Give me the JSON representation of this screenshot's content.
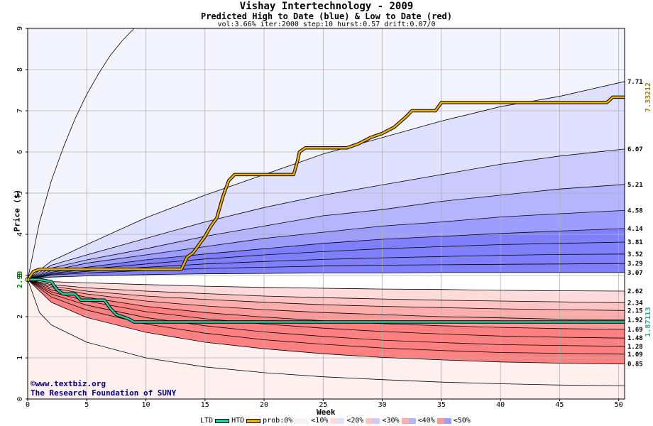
{
  "title": "Vishay Intertechnology - 2009",
  "subtitle": "Predicted High to Date (blue) & Low to Date (red)",
  "params": "vol:3.66% iter:2000 step:10 hurst:0.57 drift:0.07/0",
  "xlabel": "Week",
  "ylabel": "Price ($)",
  "credit_line1": "©www.textbiz.org",
  "credit_line2": "The Research Foundation of SUNY",
  "legend": {
    "ltd": "LTD",
    "htd": "HTD",
    "prob_prefix": "prob:0%",
    "bins": [
      "<10%",
      "<20%",
      "<30%",
      "<40%",
      "<50%"
    ]
  },
  "colors": {
    "htd_line": "#f0b000",
    "ltd_line": "#20d0a0",
    "blue_bands": [
      "#f4f4ff",
      "#e0e0ff",
      "#cacaff",
      "#b4b4ff",
      "#9d9dff",
      "#8080ff"
    ],
    "red_bands": [
      "#fff0f0",
      "#ffdcdc",
      "#ffc4c4",
      "#ffaeae",
      "#ff9a9a",
      "#ff8080"
    ],
    "start_label": "#008000"
  },
  "chart_data": {
    "type": "area",
    "xlim": [
      0,
      50.5
    ],
    "ylim": [
      0,
      9
    ],
    "x_ticks": [
      0,
      5,
      10,
      15,
      20,
      25,
      30,
      35,
      40,
      45,
      50
    ],
    "y_ticks": [
      0,
      1,
      2,
      3,
      4,
      5,
      6,
      7,
      8,
      9
    ],
    "grid": true,
    "start_price": 2.9,
    "start_price_label": "2.90",
    "blue_quantile_curves": [
      {
        "end": 7.71,
        "label": "7.71",
        "x": [
          0,
          2,
          5,
          10,
          15,
          20,
          25,
          30,
          35,
          40,
          45,
          50.5
        ],
        "y": [
          2.9,
          3.35,
          3.75,
          4.4,
          4.95,
          5.45,
          5.95,
          6.35,
          6.75,
          7.1,
          7.35,
          7.71
        ]
      },
      {
        "end": 6.07,
        "label": "6.07",
        "x": [
          0,
          2,
          5,
          10,
          15,
          20,
          25,
          30,
          35,
          40,
          45,
          50.5
        ],
        "y": [
          2.9,
          3.25,
          3.5,
          3.9,
          4.3,
          4.65,
          4.95,
          5.2,
          5.45,
          5.7,
          5.9,
          6.07
        ]
      },
      {
        "end": 5.21,
        "label": "5.21",
        "x": [
          0,
          2,
          5,
          10,
          15,
          20,
          25,
          30,
          35,
          40,
          45,
          50.5
        ],
        "y": [
          2.9,
          3.18,
          3.38,
          3.65,
          3.95,
          4.2,
          4.45,
          4.6,
          4.8,
          4.95,
          5.1,
          5.21
        ]
      },
      {
        "end": 4.58,
        "label": "4.58",
        "x": [
          0,
          2,
          5,
          10,
          15,
          20,
          25,
          30,
          35,
          40,
          45,
          50.5
        ],
        "y": [
          2.9,
          3.12,
          3.3,
          3.5,
          3.7,
          3.9,
          4.05,
          4.2,
          4.3,
          4.42,
          4.5,
          4.58
        ]
      },
      {
        "end": 4.14,
        "label": "4.14",
        "x": [
          0,
          2,
          5,
          10,
          15,
          20,
          25,
          30,
          35,
          40,
          45,
          50.5
        ],
        "y": [
          2.9,
          3.08,
          3.2,
          3.38,
          3.52,
          3.65,
          3.78,
          3.88,
          3.95,
          4.02,
          4.08,
          4.14
        ]
      },
      {
        "end": 3.81,
        "label": "3.81",
        "x": [
          0,
          2,
          5,
          10,
          15,
          20,
          25,
          30,
          35,
          40,
          45,
          50.5
        ],
        "y": [
          2.9,
          3.05,
          3.15,
          3.28,
          3.4,
          3.5,
          3.58,
          3.65,
          3.7,
          3.75,
          3.78,
          3.81
        ]
      },
      {
        "end": 3.52,
        "label": "3.52",
        "x": [
          0,
          2,
          5,
          10,
          15,
          20,
          25,
          30,
          35,
          40,
          45,
          50.5
        ],
        "y": [
          2.9,
          3.03,
          3.1,
          3.2,
          3.28,
          3.34,
          3.39,
          3.43,
          3.46,
          3.49,
          3.51,
          3.52
        ]
      },
      {
        "end": 3.29,
        "label": "3.29",
        "x": [
          0,
          2,
          5,
          10,
          15,
          20,
          25,
          30,
          35,
          40,
          45,
          50.5
        ],
        "y": [
          2.9,
          3.01,
          3.06,
          3.12,
          3.17,
          3.2,
          3.23,
          3.25,
          3.26,
          3.27,
          3.28,
          3.29
        ]
      },
      {
        "end": 3.07,
        "label": "3.07",
        "x": [
          0,
          2,
          5,
          10,
          15,
          20,
          25,
          30,
          35,
          40,
          45,
          50.5
        ],
        "y": [
          2.9,
          2.96,
          2.99,
          3.02,
          3.04,
          3.05,
          3.06,
          3.06,
          3.07,
          3.07,
          3.07,
          3.07
        ]
      }
    ],
    "blue_outer_curve": {
      "x": [
        0,
        1,
        2,
        3,
        4,
        5,
        6,
        7,
        8,
        9
      ],
      "y": [
        2.9,
        4.3,
        5.3,
        6.1,
        6.8,
        7.4,
        7.9,
        8.35,
        8.7,
        9.0
      ]
    },
    "red_quantile_curves": [
      {
        "end": 2.62,
        "label": "2.62",
        "x": [
          0,
          2,
          5,
          10,
          15,
          20,
          25,
          30,
          35,
          40,
          45,
          50.5
        ],
        "y": [
          2.9,
          2.85,
          2.82,
          2.78,
          2.74,
          2.71,
          2.69,
          2.67,
          2.66,
          2.64,
          2.63,
          2.62
        ]
      },
      {
        "end": 2.34,
        "label": "2.34",
        "x": [
          0,
          2,
          5,
          10,
          15,
          20,
          25,
          30,
          35,
          40,
          45,
          50.5
        ],
        "y": [
          2.9,
          2.78,
          2.7,
          2.62,
          2.56,
          2.5,
          2.46,
          2.43,
          2.4,
          2.38,
          2.36,
          2.34
        ]
      },
      {
        "end": 2.15,
        "label": "2.15",
        "x": [
          0,
          2,
          5,
          10,
          15,
          20,
          25,
          30,
          35,
          40,
          45,
          50.5
        ],
        "y": [
          2.9,
          2.74,
          2.62,
          2.5,
          2.42,
          2.35,
          2.29,
          2.25,
          2.22,
          2.19,
          2.17,
          2.15
        ]
      },
      {
        "end": 1.92,
        "label": "1.92",
        "x": [
          0,
          2,
          5,
          10,
          15,
          20,
          25,
          30,
          35,
          40,
          45,
          50.5
        ],
        "y": [
          2.9,
          2.7,
          2.55,
          2.38,
          2.26,
          2.17,
          2.1,
          2.05,
          2.0,
          1.97,
          1.94,
          1.92
        ]
      },
      {
        "end": 1.69,
        "label": "1.69",
        "x": [
          0,
          2,
          5,
          10,
          15,
          20,
          25,
          30,
          35,
          40,
          45,
          50.5
        ],
        "y": [
          2.9,
          2.65,
          2.47,
          2.25,
          2.1,
          1.99,
          1.9,
          1.83,
          1.78,
          1.74,
          1.71,
          1.69
        ]
      },
      {
        "end": 1.48,
        "label": "1.48",
        "x": [
          0,
          2,
          5,
          10,
          15,
          20,
          25,
          30,
          35,
          40,
          45,
          50.5
        ],
        "y": [
          2.9,
          2.6,
          2.38,
          2.12,
          1.95,
          1.82,
          1.72,
          1.64,
          1.58,
          1.53,
          1.5,
          1.48
        ]
      },
      {
        "end": 1.28,
        "label": "1.28",
        "x": [
          0,
          2,
          5,
          10,
          15,
          20,
          25,
          30,
          35,
          40,
          45,
          50.5
        ],
        "y": [
          2.9,
          2.55,
          2.28,
          1.98,
          1.78,
          1.63,
          1.52,
          1.43,
          1.37,
          1.32,
          1.3,
          1.28
        ]
      },
      {
        "end": 1.09,
        "label": "1.09",
        "x": [
          0,
          2,
          5,
          10,
          15,
          20,
          25,
          30,
          35,
          40,
          45,
          50.5
        ],
        "y": [
          2.9,
          2.48,
          2.16,
          1.82,
          1.6,
          1.44,
          1.33,
          1.24,
          1.18,
          1.13,
          1.11,
          1.09
        ]
      },
      {
        "end": 0.85,
        "label": "0.85",
        "x": [
          0,
          2,
          5,
          10,
          15,
          20,
          25,
          30,
          35,
          40,
          45,
          50.5
        ],
        "y": [
          2.9,
          2.35,
          1.98,
          1.62,
          1.38,
          1.22,
          1.1,
          1.01,
          0.95,
          0.9,
          0.87,
          0.85
        ]
      }
    ],
    "red_outer_curve": {
      "x": [
        0,
        1,
        2,
        5,
        10,
        15,
        20,
        25,
        30,
        35,
        40,
        45,
        50.5
      ],
      "y": [
        2.9,
        2.1,
        1.8,
        1.38,
        1.0,
        0.78,
        0.64,
        0.54,
        0.47,
        0.41,
        0.37,
        0.34,
        0.32
      ]
    },
    "htd_series": {
      "name": "HTD",
      "end_label": "7.33212",
      "x": [
        0,
        0.5,
        1,
        13,
        13.5,
        14,
        14.5,
        15,
        15.5,
        16,
        16.5,
        17,
        17.5,
        18,
        22,
        22.5,
        22.8,
        23,
        23.5,
        27,
        28,
        29,
        30,
        31,
        32,
        32.5,
        33,
        34.5,
        35,
        49,
        49.5,
        50.5
      ],
      "y": [
        2.9,
        3.1,
        3.15,
        3.15,
        3.45,
        3.55,
        3.75,
        3.95,
        4.2,
        4.4,
        4.9,
        5.3,
        5.45,
        5.45,
        5.45,
        5.45,
        5.75,
        6.0,
        6.1,
        6.1,
        6.2,
        6.35,
        6.45,
        6.6,
        6.85,
        7.0,
        7.0,
        7.0,
        7.2,
        7.2,
        7.33,
        7.33
      ]
    },
    "ltd_series": {
      "name": "LTD",
      "end_label": "1.87113",
      "x": [
        0,
        1,
        2,
        2.5,
        3,
        4,
        4.5,
        6.5,
        7,
        7.5,
        8,
        8.5,
        9,
        10,
        20,
        30,
        40,
        50.5
      ],
      "y": [
        2.9,
        2.9,
        2.85,
        2.65,
        2.55,
        2.55,
        2.4,
        2.4,
        2.2,
        2.05,
        2.0,
        1.95,
        1.87,
        1.87,
        1.87,
        1.87,
        1.87,
        1.87
      ]
    }
  }
}
